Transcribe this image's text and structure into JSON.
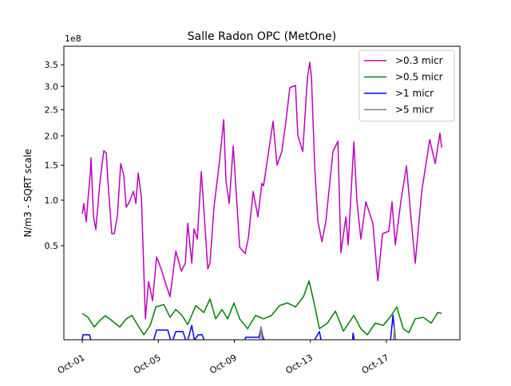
{
  "chart_data": {
    "type": "line",
    "title": "Salle Radon OPC (MetOne)",
    "ylabel": "N/m3 - SQRT scale",
    "xlabel": "",
    "y_scale": "sqrt",
    "y_offset_label": "1e8",
    "ylim": [
      0.0105,
      3.96
    ],
    "xlim": [
      0.03,
      20.87
    ],
    "x_unit": "day of October",
    "x_ticks": [
      1,
      5,
      9,
      13,
      17
    ],
    "x_tick_labels": [
      "Oct-01",
      "Oct-05",
      "Oct-09",
      "Oct-13",
      "Oct-17"
    ],
    "y_ticks": [
      0.5,
      1.0,
      1.5,
      2.0,
      2.5,
      3.0,
      3.5
    ],
    "y_tick_labels": [
      "0.5",
      "1.0",
      "1.5",
      "2.0",
      "2.5",
      "3.0",
      "3.5"
    ],
    "legend_position": "top-right",
    "grid": false,
    "series": [
      {
        "name": ">0.3 micr",
        "color": "#bf00bf",
        "points": [
          [
            1.0,
            0.833
          ],
          [
            1.08,
            0.959
          ],
          [
            1.21,
            0.742
          ],
          [
            1.29,
            0.99
          ],
          [
            1.42,
            1.379
          ],
          [
            1.46,
            1.618
          ],
          [
            1.59,
            0.796
          ],
          [
            1.71,
            0.657
          ],
          [
            1.92,
            1.227
          ],
          [
            2.13,
            1.737
          ],
          [
            2.26,
            1.697
          ],
          [
            2.34,
            1.284
          ],
          [
            2.55,
            0.616
          ],
          [
            2.68,
            0.616
          ],
          [
            2.85,
            0.815
          ],
          [
            3.02,
            1.527
          ],
          [
            3.18,
            1.343
          ],
          [
            3.31,
            0.91
          ],
          [
            3.48,
            0.98
          ],
          [
            3.69,
            1.116
          ],
          [
            3.82,
            0.959
          ],
          [
            3.94,
            1.379
          ],
          [
            4.11,
            1.041
          ],
          [
            4.32,
            0.056
          ],
          [
            4.49,
            0.227
          ],
          [
            4.7,
            0.125
          ],
          [
            4.91,
            0.404
          ],
          [
            5.16,
            0.307
          ],
          [
            5.41,
            0.208
          ],
          [
            5.62,
            0.144
          ],
          [
            5.92,
            0.451
          ],
          [
            6.21,
            0.295
          ],
          [
            6.42,
            0.354
          ],
          [
            6.55,
            0.725
          ],
          [
            6.76,
            0.354
          ],
          [
            6.88,
            0.665
          ],
          [
            7.05,
            0.561
          ],
          [
            7.26,
            1.403
          ],
          [
            7.39,
            0.91
          ],
          [
            7.6,
            0.312
          ],
          [
            7.72,
            0.354
          ],
          [
            7.93,
            0.91
          ],
          [
            8.23,
            1.592
          ],
          [
            8.44,
            2.304
          ],
          [
            8.56,
            1.261
          ],
          [
            8.73,
            0.959
          ],
          [
            8.94,
            1.819
          ],
          [
            9.28,
            0.486
          ],
          [
            9.57,
            0.431
          ],
          [
            9.74,
            0.576
          ],
          [
            9.99,
            1.116
          ],
          [
            10.24,
            0.796
          ],
          [
            10.45,
            1.227
          ],
          [
            10.54,
            1.193
          ],
          [
            11.04,
            2.273
          ],
          [
            11.25,
            1.502
          ],
          [
            11.5,
            1.724
          ],
          [
            11.71,
            2.258
          ],
          [
            11.92,
            2.969
          ],
          [
            12.22,
            3.022
          ],
          [
            12.34,
            2.003
          ],
          [
            12.6,
            1.724
          ],
          [
            12.85,
            3.203
          ],
          [
            12.97,
            3.561
          ],
          [
            13.06,
            3.202
          ],
          [
            13.23,
            1.465
          ],
          [
            13.39,
            0.751
          ],
          [
            13.61,
            0.538
          ],
          [
            13.82,
            0.751
          ],
          [
            14.19,
            1.724
          ],
          [
            14.45,
            1.903
          ],
          [
            14.61,
            0.438
          ],
          [
            14.87,
            0.796
          ],
          [
            14.99,
            0.508
          ],
          [
            15.29,
            1.889
          ],
          [
            15.45,
            0.99
          ],
          [
            15.66,
            0.561
          ],
          [
            15.92,
            0.98
          ],
          [
            16.29,
            0.725
          ],
          [
            16.55,
            0.232
          ],
          [
            16.8,
            0.616
          ],
          [
            17.13,
            0.64
          ],
          [
            17.3,
            0.98
          ],
          [
            17.47,
            0.508
          ],
          [
            17.76,
            0.98
          ],
          [
            18.06,
            1.49
          ],
          [
            18.31,
            0.751
          ],
          [
            18.52,
            0.354
          ],
          [
            18.86,
            1.116
          ],
          [
            19.28,
            1.931
          ],
          [
            19.57,
            1.527
          ],
          [
            19.82,
            2.047
          ],
          [
            19.91,
            1.791
          ]
        ]
      },
      {
        "name": ">0.5 micr",
        "color": "#008000",
        "points": [
          [
            1.0,
            0.074
          ],
          [
            1.29,
            0.061
          ],
          [
            1.63,
            0.034
          ],
          [
            1.92,
            0.051
          ],
          [
            2.21,
            0.066
          ],
          [
            2.55,
            0.051
          ],
          [
            2.97,
            0.034
          ],
          [
            3.31,
            0.056
          ],
          [
            3.61,
            0.067
          ],
          [
            3.9,
            0.04
          ],
          [
            4.24,
            0.018
          ],
          [
            4.57,
            0.038
          ],
          [
            4.87,
            0.098
          ],
          [
            5.29,
            0.108
          ],
          [
            5.62,
            0.061
          ],
          [
            5.92,
            0.088
          ],
          [
            6.25,
            0.067
          ],
          [
            6.55,
            0.04
          ],
          [
            6.97,
            0.104
          ],
          [
            7.39,
            0.077
          ],
          [
            7.72,
            0.133
          ],
          [
            8.02,
            0.056
          ],
          [
            8.35,
            0.088
          ],
          [
            8.65,
            0.056
          ],
          [
            8.98,
            0.115
          ],
          [
            9.28,
            0.056
          ],
          [
            9.7,
            0.03
          ],
          [
            10.12,
            0.067
          ],
          [
            10.54,
            0.056
          ],
          [
            10.96,
            0.067
          ],
          [
            11.38,
            0.104
          ],
          [
            11.8,
            0.115
          ],
          [
            12.22,
            0.098
          ],
          [
            12.64,
            0.144
          ],
          [
            12.93,
            0.232
          ],
          [
            13.18,
            0.122
          ],
          [
            13.48,
            0.03
          ],
          [
            13.9,
            0.044
          ],
          [
            14.32,
            0.082
          ],
          [
            14.74,
            0.025
          ],
          [
            15.29,
            0.067
          ],
          [
            15.66,
            0.03
          ],
          [
            16.0,
            0.018
          ],
          [
            16.42,
            0.044
          ],
          [
            16.84,
            0.038
          ],
          [
            17.26,
            0.067
          ],
          [
            17.55,
            0.098
          ],
          [
            17.89,
            0.03
          ],
          [
            18.18,
            0.022
          ],
          [
            18.52,
            0.056
          ],
          [
            18.94,
            0.061
          ],
          [
            19.36,
            0.044
          ],
          [
            19.7,
            0.077
          ],
          [
            19.91,
            0.074
          ]
        ]
      },
      {
        "name": ">1 micr",
        "color": "#0000ff",
        "points": [
          [
            0.95,
            0.006
          ],
          [
            1.04,
            0.018
          ],
          [
            1.38,
            0.018
          ],
          [
            1.5,
            0.006
          ],
          [
            4.7,
            0.006
          ],
          [
            4.91,
            0.027
          ],
          [
            5.5,
            0.027
          ],
          [
            5.7,
            0.006
          ],
          [
            5.92,
            0.024
          ],
          [
            6.3,
            0.024
          ],
          [
            6.5,
            0.006
          ],
          [
            6.76,
            0.038
          ],
          [
            6.9,
            0.01
          ],
          [
            7.1,
            0.018
          ],
          [
            7.3,
            0.018
          ],
          [
            7.5,
            0.006
          ],
          [
            9.47,
            0.006
          ],
          [
            9.6,
            0.014
          ],
          [
            10.3,
            0.014
          ],
          [
            10.41,
            0.034
          ],
          [
            10.5,
            0.014
          ],
          [
            10.7,
            0.006
          ],
          [
            13.1,
            0.006
          ],
          [
            13.48,
            0.024
          ],
          [
            13.6,
            0.006
          ],
          [
            15.2,
            0.006
          ],
          [
            15.25,
            0.021
          ],
          [
            15.35,
            0.006
          ],
          [
            17.2,
            0.006
          ],
          [
            17.35,
            0.068
          ],
          [
            17.5,
            0.006
          ],
          [
            19.91,
            0.006
          ]
        ]
      },
      {
        "name": ">5 micr",
        "color": "#808080",
        "points": [
          [
            0.95,
            0.004
          ],
          [
            10.3,
            0.004
          ],
          [
            10.41,
            0.034
          ],
          [
            10.5,
            0.004
          ],
          [
            17.35,
            0.004
          ],
          [
            17.43,
            0.034
          ],
          [
            17.52,
            0.004
          ],
          [
            19.91,
            0.004
          ]
        ]
      }
    ]
  }
}
